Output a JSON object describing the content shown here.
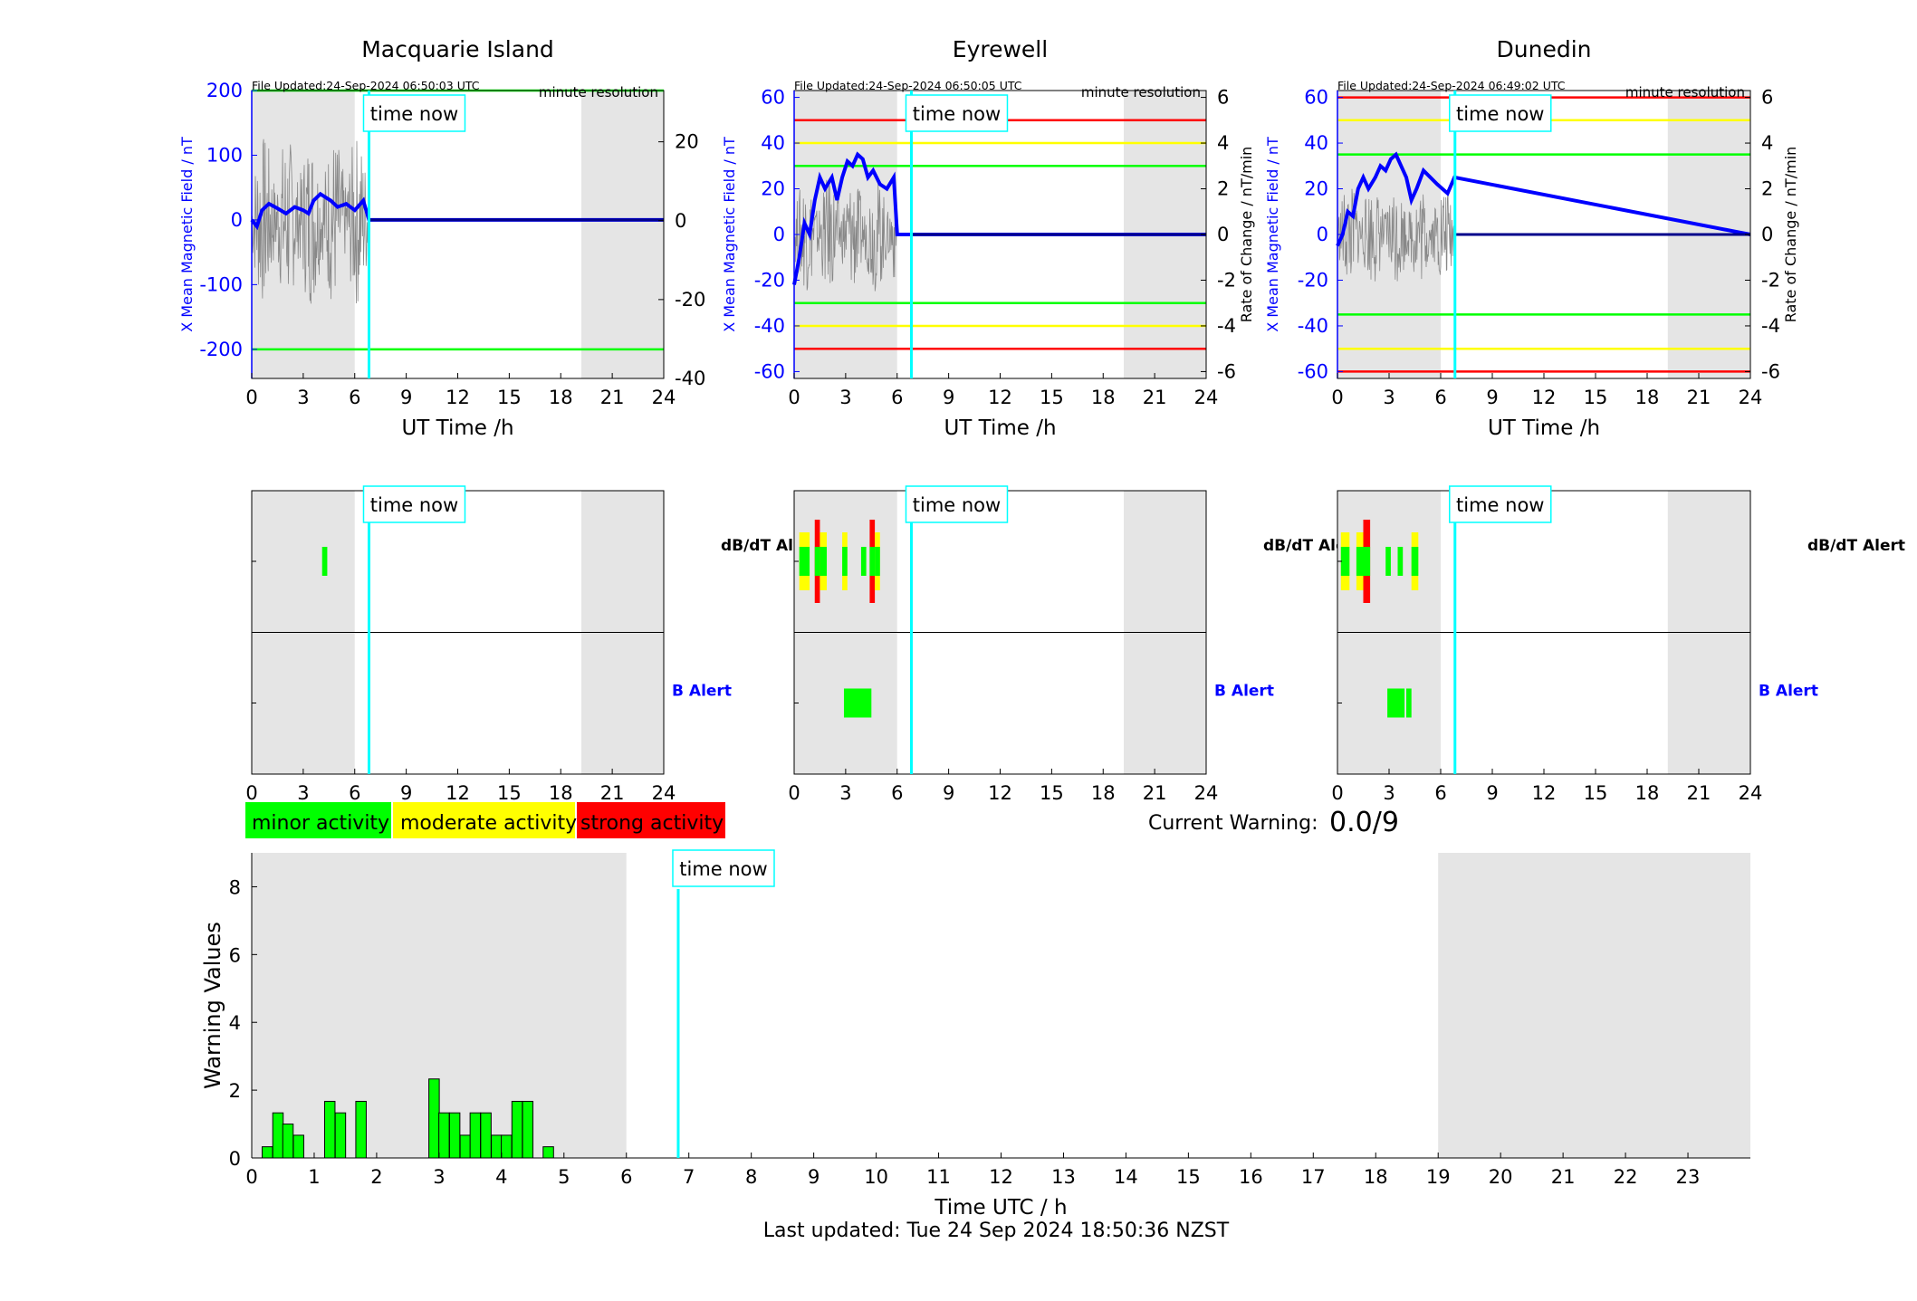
{
  "footer": {
    "last_updated": "Last updated: Tue 24 Sep 2024 18:50:36 NZST"
  },
  "colors": {
    "minor": "#00ff00",
    "moderate": "#ffff00",
    "strong": "#ff0000",
    "time_now": "#00ffff",
    "x_field": "#0000ff",
    "rate": "#000000",
    "night_shade": "#e5e5e5"
  },
  "legend": {
    "minor": "minor activity",
    "moderate": "moderate activity",
    "strong": "strong activity"
  },
  "current_warning": {
    "label": "Current Warning:",
    "value": "0.0/9"
  },
  "time_now_label": "time now",
  "chart_data": [
    {
      "type": "line",
      "station": "Macquarie Island",
      "title": "Macquarie Island",
      "file_updated": "File Updated:24-Sep-2024 06:50:03 UTC",
      "resolution": "minute resolution",
      "xlabel": "UT Time /h",
      "ylabel": "X Mean Magnetic Field / nT",
      "y2label": "",
      "xlim": [
        0,
        24
      ],
      "xticks": [
        0,
        3,
        6,
        9,
        12,
        15,
        18,
        21,
        24
      ],
      "ylim": [
        -245,
        200
      ],
      "yticks": [
        -200,
        -100,
        0,
        100,
        200
      ],
      "y2lim": [
        -40,
        33
      ],
      "y2ticks": [
        -40,
        -20,
        0,
        20
      ],
      "night_shade": [
        [
          0,
          6
        ],
        [
          19.2,
          24
        ]
      ],
      "time_now": 6.83,
      "thresholds": [
        {
          "value": 200,
          "level": "minor"
        },
        {
          "value": -200,
          "level": "minor"
        }
      ],
      "series": [
        {
          "role": "x_field",
          "x": [
            0,
            0.3,
            0.6,
            1,
            1.5,
            2,
            2.5,
            3,
            3.3,
            3.6,
            4,
            4.3,
            4.6,
            5,
            5.5,
            6,
            6.5,
            6.83,
            24
          ],
          "values": [
            0,
            -10,
            15,
            25,
            18,
            10,
            20,
            15,
            10,
            30,
            40,
            35,
            30,
            20,
            25,
            15,
            30,
            0,
            0
          ]
        },
        {
          "role": "rate",
          "amplitude": 22,
          "tmax": 6.8
        }
      ]
    },
    {
      "type": "line",
      "station": "Eyrewell",
      "title": "Eyrewell",
      "file_updated": "File Updated:24-Sep-2024 06:50:05 UTC",
      "resolution": "minute resolution",
      "xlabel": "UT Time /h",
      "ylabel": "X Mean Magnetic Field / nT",
      "y2label": "Rate of Change / nT/min",
      "xlim": [
        0,
        24
      ],
      "xticks": [
        0,
        3,
        6,
        9,
        12,
        15,
        18,
        21,
        24
      ],
      "ylim": [
        -63,
        63
      ],
      "yticks": [
        -60,
        -40,
        -20,
        0,
        20,
        40,
        60
      ],
      "y2lim": [
        -6.3,
        6.3
      ],
      "y2ticks": [
        -6,
        -4,
        -2,
        0,
        2,
        4,
        6
      ],
      "night_shade": [
        [
          0,
          6
        ],
        [
          19.2,
          24
        ]
      ],
      "time_now": 6.83,
      "thresholds": [
        {
          "value": 50,
          "level": "strong"
        },
        {
          "value": 40,
          "level": "moderate"
        },
        {
          "value": 30,
          "level": "minor"
        },
        {
          "value": -30,
          "level": "minor"
        },
        {
          "value": -40,
          "level": "moderate"
        },
        {
          "value": -50,
          "level": "strong"
        }
      ],
      "series": [
        {
          "role": "x_field",
          "x": [
            0,
            0.3,
            0.6,
            0.9,
            1.2,
            1.5,
            1.8,
            2.2,
            2.5,
            2.8,
            3.1,
            3.4,
            3.7,
            4,
            4.3,
            4.6,
            5,
            5.4,
            5.8,
            6,
            24
          ],
          "values": [
            -22,
            -10,
            5,
            0,
            15,
            25,
            20,
            25,
            15,
            25,
            32,
            30,
            35,
            33,
            25,
            28,
            22,
            20,
            25,
            0,
            0
          ]
        },
        {
          "role": "rate",
          "amplitude": 2.5,
          "tmax": 6.0
        }
      ]
    },
    {
      "type": "line",
      "station": "Dunedin",
      "title": "Dunedin",
      "file_updated": "File Updated:24-Sep-2024 06:49:02 UTC",
      "resolution": "minute resolution",
      "xlabel": "UT Time /h",
      "ylabel": "X Mean Magnetic Field / nT",
      "y2label": "Rate of Change / nT/min",
      "xlim": [
        0,
        24
      ],
      "xticks": [
        0,
        3,
        6,
        9,
        12,
        15,
        18,
        21,
        24
      ],
      "ylim": [
        -63,
        63
      ],
      "yticks": [
        -60,
        -40,
        -20,
        0,
        20,
        40,
        60
      ],
      "y2lim": [
        -6.3,
        6.3
      ],
      "y2ticks": [
        -6,
        -4,
        -2,
        0,
        2,
        4,
        6
      ],
      "night_shade": [
        [
          0,
          6
        ],
        [
          19.2,
          24
        ]
      ],
      "time_now": 6.83,
      "thresholds": [
        {
          "value": 60,
          "level": "strong"
        },
        {
          "value": 50,
          "level": "moderate"
        },
        {
          "value": 35,
          "level": "minor"
        },
        {
          "value": -35,
          "level": "minor"
        },
        {
          "value": -50,
          "level": "moderate"
        },
        {
          "value": -60,
          "level": "strong"
        }
      ],
      "series": [
        {
          "role": "x_field",
          "x": [
            0,
            0.3,
            0.6,
            0.9,
            1.2,
            1.5,
            1.8,
            2.2,
            2.5,
            2.8,
            3.1,
            3.4,
            3.7,
            4,
            4.3,
            4.6,
            5,
            5.4,
            5.8,
            6.4,
            6.8,
            24
          ],
          "values": [
            -5,
            0,
            10,
            8,
            20,
            25,
            20,
            25,
            30,
            28,
            33,
            35,
            30,
            25,
            15,
            20,
            28,
            25,
            22,
            18,
            25,
            0
          ]
        },
        {
          "role": "rate",
          "amplitude": 2.2,
          "tmax": 6.8
        }
      ]
    },
    {
      "type": "heatmap",
      "station": "Macquarie Island",
      "labels": [
        "dB/dT Alert",
        "B Alert"
      ],
      "xlim": [
        0,
        24
      ],
      "xticks": [
        0,
        3,
        6,
        9,
        12,
        15,
        18,
        21,
        24
      ],
      "night_shade": [
        [
          0,
          6
        ],
        [
          19.2,
          24
        ]
      ],
      "time_now": 6.83,
      "dbdt_alerts": [
        {
          "start": 4.1,
          "end": 4.4,
          "level": "minor"
        }
      ],
      "b_alerts": []
    },
    {
      "type": "heatmap",
      "station": "Eyrewell",
      "labels": [
        "dB/dT Alert",
        "B Alert"
      ],
      "xlim": [
        0,
        24
      ],
      "xticks": [
        0,
        3,
        6,
        9,
        12,
        15,
        18,
        21,
        24
      ],
      "night_shade": [
        [
          0,
          6
        ],
        [
          19.2,
          24
        ]
      ],
      "time_now": 6.83,
      "dbdt_alerts": [
        {
          "start": 0.3,
          "end": 0.9,
          "level": "moderate"
        },
        {
          "start": 1.2,
          "end": 1.5,
          "level": "strong"
        },
        {
          "start": 1.5,
          "end": 1.9,
          "level": "moderate"
        },
        {
          "start": 2.8,
          "end": 3.1,
          "level": "moderate"
        },
        {
          "start": 3.9,
          "end": 4.2,
          "level": "minor"
        },
        {
          "start": 4.4,
          "end": 4.7,
          "level": "strong"
        },
        {
          "start": 4.7,
          "end": 5.0,
          "level": "moderate"
        }
      ],
      "b_alerts": [
        {
          "start": 2.9,
          "end": 4.5,
          "level": "minor"
        }
      ]
    },
    {
      "type": "heatmap",
      "station": "Dunedin",
      "labels": [
        "dB/dT Alert",
        "B Alert"
      ],
      "xlim": [
        0,
        24
      ],
      "xticks": [
        0,
        3,
        6,
        9,
        12,
        15,
        18,
        21,
        24
      ],
      "night_shade": [
        [
          0,
          6
        ],
        [
          19.2,
          24
        ]
      ],
      "time_now": 6.83,
      "dbdt_alerts": [
        {
          "start": 0.2,
          "end": 0.7,
          "level": "moderate"
        },
        {
          "start": 1.1,
          "end": 1.5,
          "level": "moderate"
        },
        {
          "start": 1.5,
          "end": 1.9,
          "level": "strong"
        },
        {
          "start": 2.8,
          "end": 3.1,
          "level": "minor"
        },
        {
          "start": 3.5,
          "end": 3.8,
          "level": "minor"
        },
        {
          "start": 4.3,
          "end": 4.7,
          "level": "moderate"
        }
      ],
      "b_alerts": [
        {
          "start": 2.9,
          "end": 3.9,
          "level": "minor"
        },
        {
          "start": 4.0,
          "end": 4.3,
          "level": "minor"
        }
      ]
    },
    {
      "type": "bar",
      "title": "",
      "xlabel": "Time UTC / h",
      "ylabel": "Warning Values",
      "xlim": [
        0,
        24
      ],
      "xticks": [
        0,
        1,
        2,
        3,
        4,
        5,
        6,
        7,
        8,
        9,
        10,
        11,
        12,
        13,
        14,
        15,
        16,
        17,
        18,
        19,
        20,
        21,
        22,
        23
      ],
      "ylim": [
        0,
        9
      ],
      "yticks": [
        0,
        2,
        4,
        6,
        8
      ],
      "night_shade": [
        [
          0,
          6
        ],
        [
          19,
          24
        ]
      ],
      "time_now": 6.83,
      "bar_width": 0.1667,
      "x": [
        0.25,
        0.42,
        0.58,
        0.75,
        1.25,
        1.42,
        1.75,
        2.92,
        3.08,
        3.25,
        3.42,
        3.58,
        3.75,
        3.92,
        4.08,
        4.25,
        4.42,
        4.75
      ],
      "values": [
        0.33,
        1.33,
        1.0,
        0.67,
        1.67,
        1.33,
        1.67,
        2.33,
        1.33,
        1.33,
        0.67,
        1.33,
        1.33,
        0.67,
        0.67,
        1.67,
        1.67,
        0.33
      ]
    }
  ]
}
